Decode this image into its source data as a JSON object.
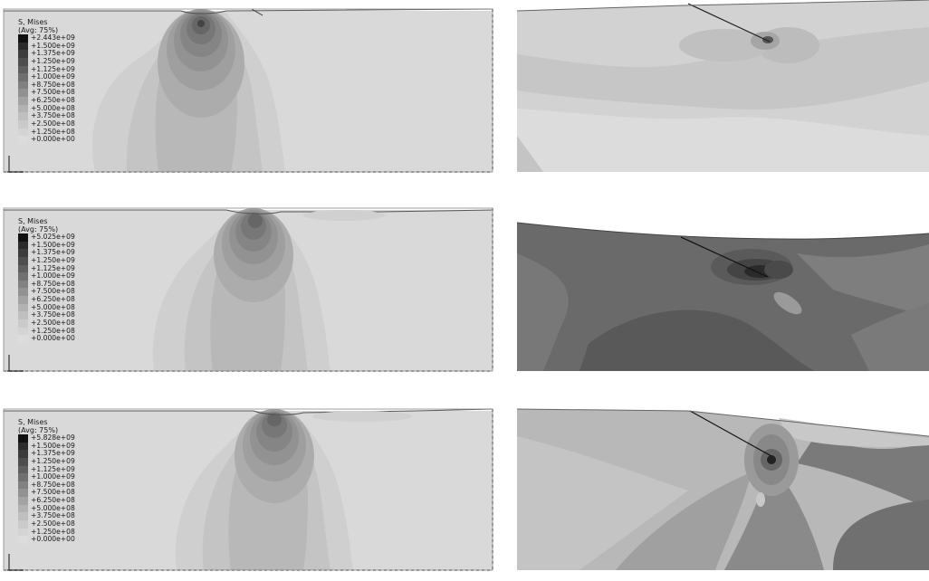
{
  "figure": {
    "panels": [
      {
        "legend": {
          "title": "S, Mises",
          "subtitle": "(Avg: 75%)",
          "levels": [
            "+2.443e+09",
            "+1.500e+09",
            "+1.375e+09",
            "+1.250e+09",
            "+1.125e+09",
            "+1.000e+09",
            "+8.750e+08",
            "+7.500e+08",
            "+6.250e+08",
            "+5.000e+08",
            "+3.750e+08",
            "+2.500e+08",
            "+1.250e+08",
            "+0.000e+00"
          ]
        }
      },
      {
        "legend": {
          "title": "S, Mises",
          "subtitle": "(Avg: 75%)",
          "levels": [
            "+5.025e+09",
            "+1.500e+09",
            "+1.375e+09",
            "+1.250e+09",
            "+1.125e+09",
            "+1.000e+09",
            "+8.750e+08",
            "+7.500e+08",
            "+6.250e+08",
            "+5.000e+08",
            "+3.750e+08",
            "+2.500e+08",
            "+1.250e+08",
            "+0.000e+00"
          ]
        }
      },
      {
        "legend": {
          "title": "S, Mises",
          "subtitle": "(Avg: 75%)",
          "levels": [
            "+5.828e+09",
            "+1.500e+09",
            "+1.375e+09",
            "+1.250e+09",
            "+1.125e+09",
            "+1.000e+09",
            "+8.750e+08",
            "+7.500e+08",
            "+6.250e+08",
            "+5.000e+08",
            "+3.750e+08",
            "+2.500e+08",
            "+1.250e+08",
            "+0.000e+00"
          ]
        }
      }
    ],
    "contour_colors": [
      "#111111",
      "#2b2b2b",
      "#3c3c3c",
      "#4e4e4e",
      "#5f5f5f",
      "#707070",
      "#818181",
      "#929292",
      "#a3a3a3",
      "#b2b2b2",
      "#bfbfbf",
      "#cacaca",
      "#d4d4d4",
      "#dcdcdc"
    ]
  }
}
